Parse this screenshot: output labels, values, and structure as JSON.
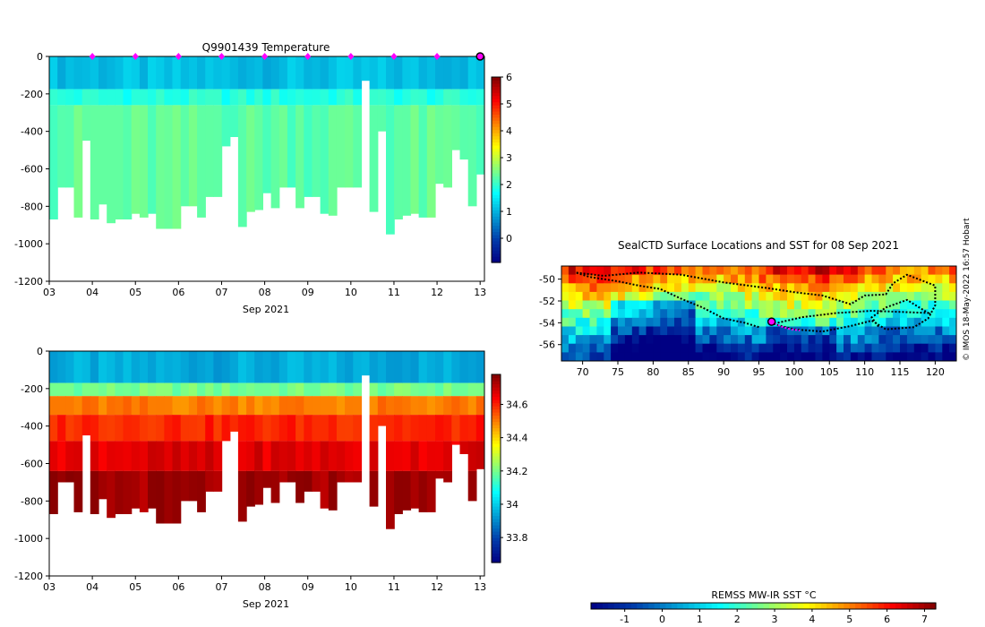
{
  "credit": "© IMOS 18-May-2022 16:57 Hobart",
  "chart_data": [
    {
      "id": "temperature",
      "type": "heatmap",
      "title": "Q9901439  Temperature",
      "xlabel": "Sep 2021",
      "xticks": [
        "03",
        "04",
        "05",
        "06",
        "07",
        "08",
        "09",
        "10",
        "11",
        "12",
        "13"
      ],
      "xlim": [
        3,
        13.1
      ],
      "ylim": [
        -1200,
        0
      ],
      "yticks": [
        "0",
        "-200",
        "-400",
        "-600",
        "-800",
        "-1000",
        "-1200"
      ],
      "colorbar": {
        "min": -0.9,
        "max": 6,
        "ticks": [
          "0",
          "1",
          "2",
          "3",
          "4",
          "5",
          "6"
        ]
      },
      "surface_markers_x": [
        4,
        5,
        6,
        7,
        8,
        9,
        10,
        11,
        12
      ],
      "latest_marker_x": 13,
      "profile_depths": [
        870,
        700,
        700,
        860,
        450,
        870,
        790,
        890,
        870,
        870,
        840,
        860,
        840,
        920,
        920,
        920,
        800,
        800,
        860,
        750,
        750,
        480,
        430,
        910,
        830,
        820,
        730,
        810,
        700,
        700,
        810,
        750,
        750,
        840,
        850,
        700,
        700,
        700,
        130,
        830,
        400,
        950,
        870,
        850,
        840,
        860,
        860,
        680,
        700,
        500,
        550,
        800,
        630
      ],
      "layers": [
        {
          "from": 0,
          "to": 175,
          "value": 1.1
        },
        {
          "from": 175,
          "to": 260,
          "value": 1.9
        },
        {
          "from": 260,
          "to": 2000,
          "value": 2.3
        }
      ]
    },
    {
      "id": "salinity",
      "type": "heatmap",
      "title": "",
      "xlabel": "Sep 2021",
      "xticks": [
        "03",
        "04",
        "05",
        "06",
        "07",
        "08",
        "09",
        "10",
        "11",
        "12",
        "13"
      ],
      "xlim": [
        3,
        13.1
      ],
      "ylim": [
        -1200,
        0
      ],
      "yticks": [
        "0",
        "-200",
        "-400",
        "-600",
        "-800",
        "-1000",
        "-1200"
      ],
      "colorbar": {
        "min": 33.65,
        "max": 34.78,
        "ticks": [
          "33.8",
          "34",
          "34.2",
          "34.4",
          "34.6"
        ]
      },
      "layers": [
        {
          "from": 0,
          "to": 170,
          "value": 33.95
        },
        {
          "from": 170,
          "to": 240,
          "value": 34.2
        },
        {
          "from": 240,
          "to": 340,
          "value": 34.5
        },
        {
          "from": 340,
          "to": 480,
          "value": 34.6
        },
        {
          "from": 480,
          "to": 640,
          "value": 34.67
        },
        {
          "from": 640,
          "to": 2000,
          "value": 34.74
        }
      ]
    },
    {
      "id": "sst-map",
      "type": "heatmap",
      "title": "SealCTD Surface Locations and SST for 08 Sep 2021",
      "xlim": [
        67,
        123
      ],
      "ylim": [
        -57.5,
        -48.8
      ],
      "xticks": [
        70,
        75,
        80,
        85,
        90,
        95,
        100,
        105,
        110,
        115,
        120
      ],
      "yticks": [
        -50,
        -52,
        -54,
        -56
      ],
      "colorbar_label": "REMSS MW-IR SST °C",
      "colorbar": {
        "min": -1.9,
        "max": 7.3,
        "ticks": [
          "-1",
          "0",
          "1",
          "2",
          "3",
          "4",
          "5",
          "6",
          "7"
        ]
      },
      "track": [
        [
          95,
          -54.4
        ],
        [
          93,
          -54.0
        ],
        [
          90,
          -53.6
        ],
        [
          87,
          -52.6
        ],
        [
          84,
          -51.8
        ],
        [
          81,
          -50.9
        ],
        [
          78,
          -50.6
        ],
        [
          75,
          -50.2
        ],
        [
          71,
          -49.8
        ],
        [
          69,
          -49.4
        ],
        [
          73,
          -49.7
        ],
        [
          78,
          -49.4
        ],
        [
          84,
          -49.6
        ],
        [
          90,
          -50.3
        ],
        [
          96,
          -50.8
        ],
        [
          100,
          -51.2
        ],
        [
          104,
          -51.5
        ],
        [
          108,
          -52.3
        ],
        [
          110,
          -51.5
        ],
        [
          113,
          -51.4
        ],
        [
          114,
          -50.4
        ],
        [
          116,
          -49.6
        ],
        [
          118,
          -50.1
        ],
        [
          120,
          -50.6
        ],
        [
          120,
          -52.4
        ],
        [
          119,
          -53.6
        ],
        [
          117,
          -54.4
        ],
        [
          113,
          -54.6
        ],
        [
          111,
          -53.8
        ],
        [
          108,
          -54.3
        ],
        [
          104,
          -54.8
        ],
        [
          100,
          -54.6
        ],
        [
          97,
          -54.1
        ],
        [
          101,
          -53.5
        ],
        [
          106,
          -53.1
        ],
        [
          111,
          -52.9
        ],
        [
          115,
          -53.0
        ],
        [
          119,
          -53.1
        ],
        [
          116,
          -51.9
        ],
        [
          113,
          -52.6
        ],
        [
          111,
          -53.5
        ],
        [
          112,
          -54.4
        ]
      ],
      "current_position": [
        96.8,
        -53.9
      ],
      "recent_track": [
        [
          96.8,
          -53.9
        ],
        [
          98,
          -54.3
        ],
        [
          99.5,
          -54.6
        ],
        [
          100.8,
          -54.7
        ]
      ]
    }
  ]
}
